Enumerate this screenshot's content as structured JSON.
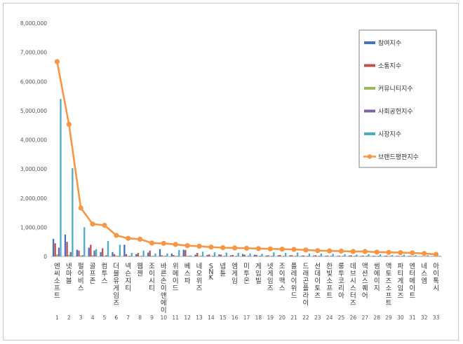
{
  "chart_data": {
    "type": "bar",
    "title": "",
    "xlabel": "",
    "ylabel": "",
    "ylim": [
      0,
      8000000
    ],
    "yticks": [
      "0",
      "1,000,000",
      "2,000,000",
      "3,000,000",
      "4,000,000",
      "5,000,000",
      "6,000,000",
      "7,000,000",
      "8,000,000"
    ],
    "ytick_values": [
      0,
      1000000,
      2000000,
      3000000,
      4000000,
      5000000,
      6000000,
      7000000,
      8000000
    ],
    "grid": false,
    "legend_position": "top-right",
    "ranks": [
      "1",
      "2",
      "3",
      "4",
      "5",
      "6",
      "7",
      "8",
      "9",
      "10",
      "11",
      "12",
      "13",
      "14",
      "15",
      "16",
      "17",
      "18",
      "19",
      "20",
      "21",
      "22",
      "23",
      "24",
      "25",
      "26",
      "27",
      "28",
      "29",
      "30",
      "31",
      "32",
      "33"
    ],
    "categories": [
      "엔씨소프트",
      "넷마블",
      "펄어비스",
      "골프존",
      "컴투스",
      "더블유게임즈",
      "넥슨지티",
      "웹젠",
      "조이시티",
      "바른손이앤에이",
      "위메이드",
      "베스파",
      "네오위즈",
      "SNK",
      "넵튠",
      "엠게임",
      "미투온",
      "게임빌",
      "넷게임즈",
      "조이맥스",
      "플레이위드",
      "드래곤플라이",
      "선데이토즈",
      "한빛소프트",
      "룽투코리아",
      "데브시스터즈",
      "액션스퀘어",
      "썸에이지",
      "액토즈소프트",
      "파티게임즈",
      "엔터메이트",
      "네스엠",
      "아이톡시"
    ],
    "series": [
      {
        "name": "참여지수",
        "color": "#4472c4",
        "values": [
          600000,
          750000,
          230000,
          300000,
          150000,
          150000,
          400000,
          80000,
          130000,
          250000,
          100000,
          230000,
          60000,
          50000,
          70000,
          40000,
          80000,
          60000,
          30000,
          40000,
          40000,
          30000,
          30000,
          20000,
          20000,
          30000,
          20000,
          20000,
          20000,
          20000,
          20000,
          10000,
          10000
        ]
      },
      {
        "name": "소통지수",
        "color": "#c0504d",
        "values": [
          450000,
          500000,
          200000,
          400000,
          280000,
          80000,
          80000,
          120000,
          200000,
          40000,
          50000,
          220000,
          120000,
          70000,
          60000,
          50000,
          60000,
          50000,
          40000,
          50000,
          40000,
          30000,
          40000,
          30000,
          30000,
          40000,
          30000,
          20000,
          30000,
          20000,
          20000,
          10000,
          10000
        ]
      },
      {
        "name": "커뮤니티지수",
        "color": "#9bbb59",
        "values": [
          70000,
          60000,
          30000,
          40000,
          20000,
          30000,
          20000,
          20000,
          20000,
          20000,
          20000,
          20000,
          10000,
          10000,
          10000,
          10000,
          10000,
          10000,
          10000,
          10000,
          10000,
          10000,
          10000,
          10000,
          10000,
          10000,
          10000,
          10000,
          10000,
          10000,
          10000,
          5000,
          5000
        ]
      },
      {
        "name": "사회공헌지수",
        "color": "#8064a2",
        "values": [
          300000,
          150000,
          40000,
          200000,
          40000,
          20000,
          20000,
          20000,
          20000,
          20000,
          20000,
          20000,
          20000,
          20000,
          20000,
          20000,
          20000,
          20000,
          20000,
          20000,
          20000,
          20000,
          20000,
          20000,
          20000,
          20000,
          20000,
          20000,
          20000,
          20000,
          20000,
          10000,
          10000
        ]
      },
      {
        "name": "시장지수",
        "color": "#4bacc6",
        "values": [
          5400000,
          3030000,
          1000000,
          250000,
          530000,
          400000,
          120000,
          200000,
          100000,
          100000,
          220000,
          30000,
          160000,
          140000,
          130000,
          120000,
          100000,
          90000,
          140000,
          120000,
          130000,
          100000,
          100000,
          90000,
          80000,
          60000,
          80000,
          70000,
          50000,
          60000,
          40000,
          40000,
          20000
        ]
      }
    ],
    "line": {
      "name": "브랜드평판지수",
      "color": "#f79646",
      "values": [
        6680000,
        4530000,
        1660000,
        1110000,
        1070000,
        720000,
        620000,
        590000,
        460000,
        450000,
        410000,
        370000,
        350000,
        320000,
        300000,
        290000,
        280000,
        270000,
        260000,
        250000,
        240000,
        220000,
        200000,
        190000,
        180000,
        170000,
        170000,
        150000,
        140000,
        130000,
        120000,
        100000,
        70000
      ]
    }
  }
}
